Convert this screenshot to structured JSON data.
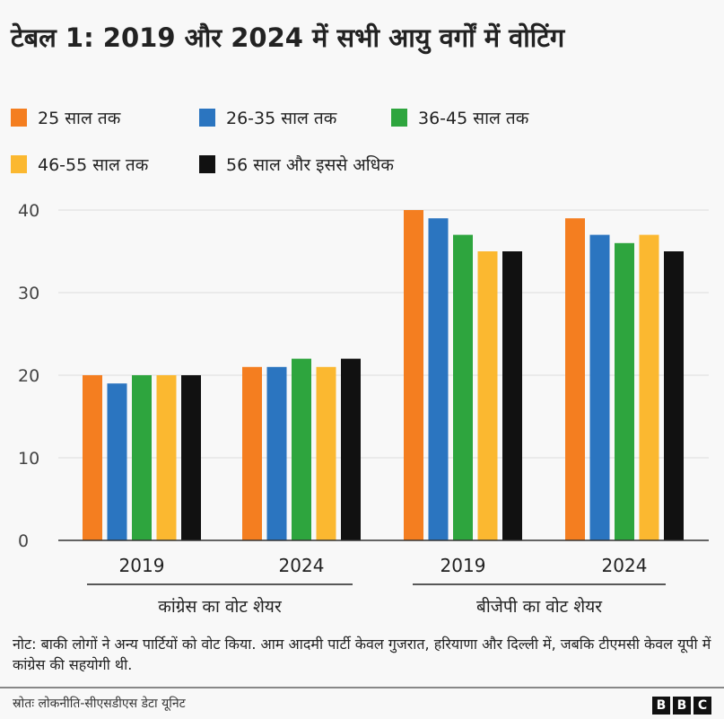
{
  "chart_data": {
    "type": "bar",
    "title": "टेबल 1: 2019 और 2024 में सभी आयु वर्गों में वोटिंग",
    "categories": [
      "2019",
      "2024",
      "2019",
      "2024"
    ],
    "groups": [
      {
        "label": "कांग्रेस का वोट शेयर",
        "categories": [
          "2019",
          "2024"
        ]
      },
      {
        "label": "बीजेपी का वोट शेयर",
        "categories": [
          "2019",
          "2024"
        ]
      }
    ],
    "series": [
      {
        "name": "25 साल तक",
        "color": "#f47e20",
        "values": [
          20,
          21,
          40,
          39
        ]
      },
      {
        "name": "26-35 साल तक",
        "color": "#2b75c0",
        "values": [
          19,
          21,
          39,
          37
        ]
      },
      {
        "name": "36-45 साल तक",
        "color": "#2ea53e",
        "values": [
          20,
          22,
          37,
          36
        ]
      },
      {
        "name": "46-55 साल तक",
        "color": "#fbb830",
        "values": [
          20,
          21,
          35,
          37
        ]
      },
      {
        "name": "56 साल और इससे अधिक",
        "color": "#111111",
        "values": [
          20,
          22,
          35,
          35
        ]
      }
    ],
    "yticks": [
      "0",
      "10",
      "20",
      "30",
      "40"
    ],
    "ylim": [
      0,
      40
    ],
    "grid": true,
    "legend": "top",
    "xlabel": "",
    "ylabel": ""
  },
  "note": "नोट: बाकी लोगों ने अन्य पार्टियों को वोट किया. आम आदमी पार्टी केवल गुजरात, हरियाणा और दिल्ली में, जबकि टीएमसी केवल यूपी में कांग्रेस की सहयोगी थी.",
  "source": "स्रोतः लोकनीति-सीएसडीएस डेटा यूनिट",
  "logo": "BBC"
}
